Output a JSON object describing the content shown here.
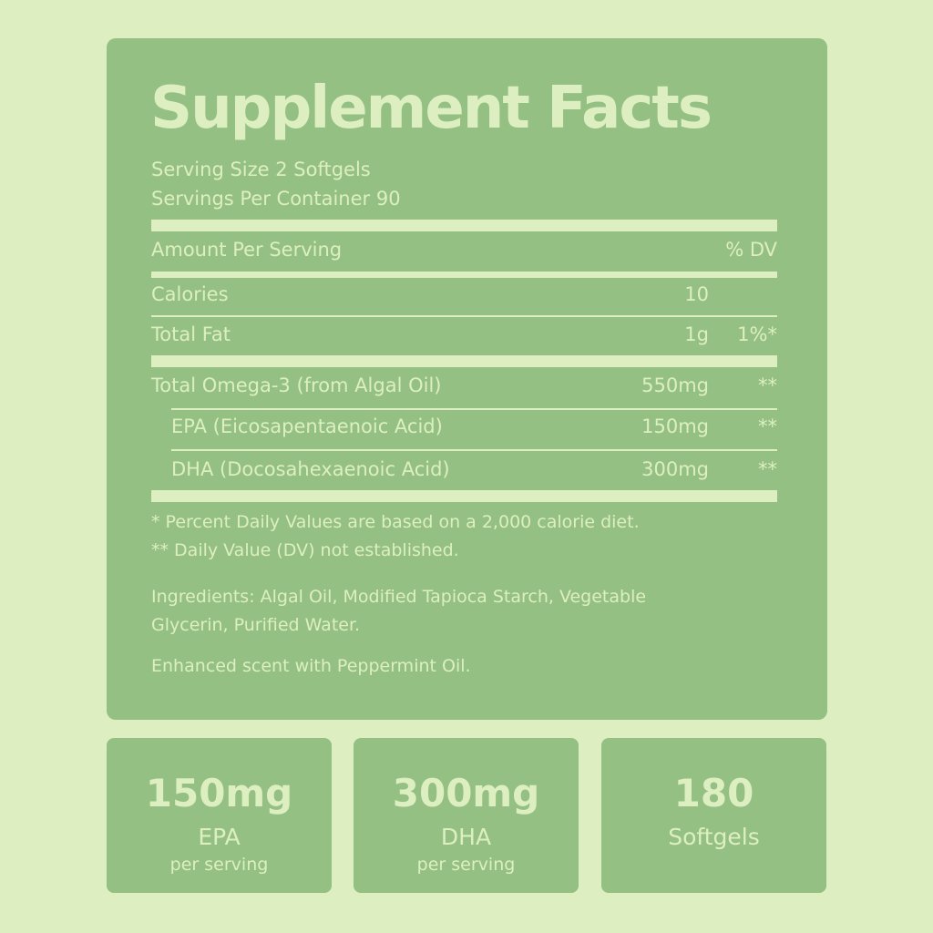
{
  "title": "Supplement Facts",
  "serving_size": "Serving Size 2 Softgels",
  "servings_per_container": "Servings Per Container 90",
  "header": {
    "amount": "Amount Per Serving",
    "dv": "% DV"
  },
  "rows": [
    {
      "name": "Calories",
      "amount": "10",
      "dv": ""
    },
    {
      "name": "Total Fat",
      "amount": "1g",
      "dv": "1%*"
    },
    {
      "name": "Total Omega-3 (from Algal Oil)",
      "amount": "550mg",
      "dv": "**"
    },
    {
      "name": "EPA (Eicosapentaenoic Acid)",
      "amount": "150mg",
      "dv": "**"
    },
    {
      "name": "DHA (Docosahexaenoic Acid)",
      "amount": "300mg",
      "dv": "**"
    }
  ],
  "footnote1": "* Percent Daily Values are based on a 2,000 calorie diet.",
  "footnote2": "** Daily Value (DV) not established.",
  "ingredients_line1": "Ingredients: Algal Oil, Modified Tapioca Starch, Vegetable",
  "ingredients_line2": "Glycerin, Purified Water.",
  "scent": "Enhanced scent with Peppermint Oil.",
  "badges": [
    {
      "value": "150mg",
      "label": "EPA",
      "sub": "per serving"
    },
    {
      "value": "300mg",
      "label": "DHA",
      "sub": "per serving"
    },
    {
      "value": "180",
      "label": "Softgels",
      "sub": ""
    }
  ],
  "colors": {
    "background": "#ddefc0",
    "panel": "#94c083",
    "text": "#ddefc0"
  }
}
